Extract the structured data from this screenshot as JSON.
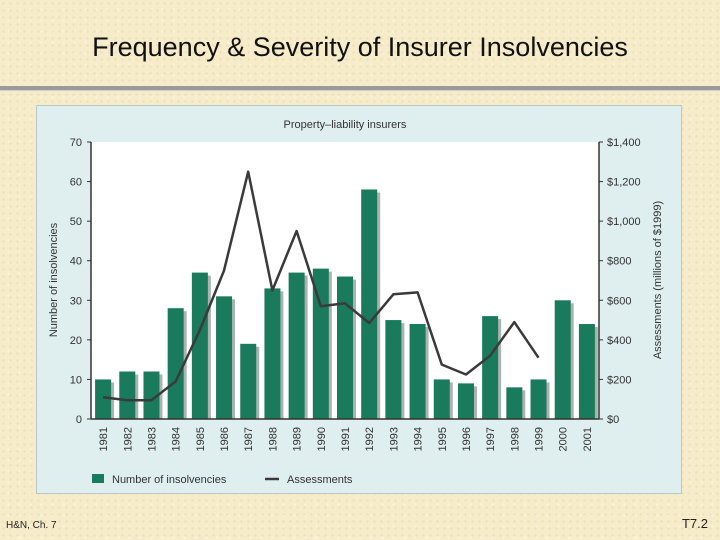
{
  "slide": {
    "title": "Frequency & Severity of Insurer Insolvencies",
    "footer_left": "H&N, Ch. 7",
    "footer_right": "T7.2"
  },
  "colors": {
    "bar": "#1a7a5c",
    "bar_shadow": "#a9b3b0",
    "line": "#3a3a3a",
    "plot_bg": "#ffffff",
    "panel_bg": "#dfeeee"
  },
  "chart_data": {
    "type": "bar",
    "title": "Property–liability insurers",
    "categories": [
      "1981",
      "1982",
      "1983",
      "1984",
      "1985",
      "1986",
      "1987",
      "1988",
      "1989",
      "1990",
      "1991",
      "1992",
      "1993",
      "1994",
      "1995",
      "1996",
      "1997",
      "1998",
      "1999",
      "2000",
      "2001"
    ],
    "series": [
      {
        "name": "Number of insolvencies",
        "type": "bar",
        "axis": "left",
        "values": [
          10,
          12,
          12,
          28,
          37,
          31,
          19,
          33,
          37,
          38,
          36,
          58,
          25,
          24,
          10,
          9,
          26,
          8,
          10,
          30,
          24
        ]
      },
      {
        "name": "Assessments",
        "type": "line",
        "axis": "right",
        "values": [
          110,
          95,
          95,
          190,
          450,
          750,
          1250,
          650,
          950,
          570,
          585,
          485,
          630,
          640,
          275,
          225,
          320,
          490,
          310,
          null,
          null
        ]
      }
    ],
    "ylabel": "Number of insolvencies",
    "ylabel_right": "Assessments (millions of $1999)",
    "ylim": [
      0,
      70
    ],
    "ylim_right": [
      0,
      1400
    ],
    "yticks": [
      "0",
      "10",
      "20",
      "30",
      "40",
      "50",
      "60",
      "70"
    ],
    "yticks_right": [
      "$0",
      "$200",
      "$400",
      "$600",
      "$800",
      "$1,000",
      "$1,200",
      "$1,400"
    ],
    "legend": [
      "Number of insolvencies",
      "Assessments"
    ],
    "legend_position": "bottom"
  }
}
